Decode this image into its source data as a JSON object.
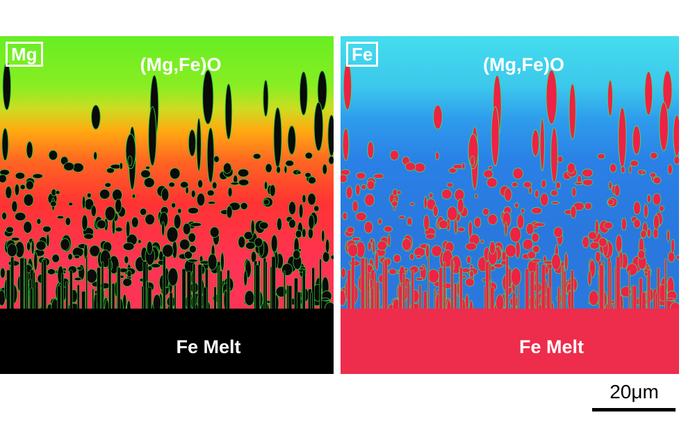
{
  "panels": [
    {
      "id": "mg",
      "element_label": "Mg",
      "top_phase_label": "(Mg,Fe)O",
      "bottom_phase_label": "Fe Melt",
      "colors": {
        "top": "#66ee22",
        "middle": "#ff8800",
        "lower": "#ff3333",
        "dendrite": "#0a0a0a",
        "melt": "#000000",
        "dendrite_edge": "#33cc33"
      }
    },
    {
      "id": "fe",
      "element_label": "Fe",
      "top_phase_label": "(Mg,Fe)O",
      "bottom_phase_label": "Fe Melt",
      "colors": {
        "top": "#44ddee",
        "middle": "#2a88ee",
        "lower": "#2266dd",
        "dendrite": "#ee2244",
        "melt": "#ee2c4c",
        "dendrite_edge": "#33dd77"
      }
    }
  ],
  "scale_bar": {
    "label": "20μm"
  }
}
